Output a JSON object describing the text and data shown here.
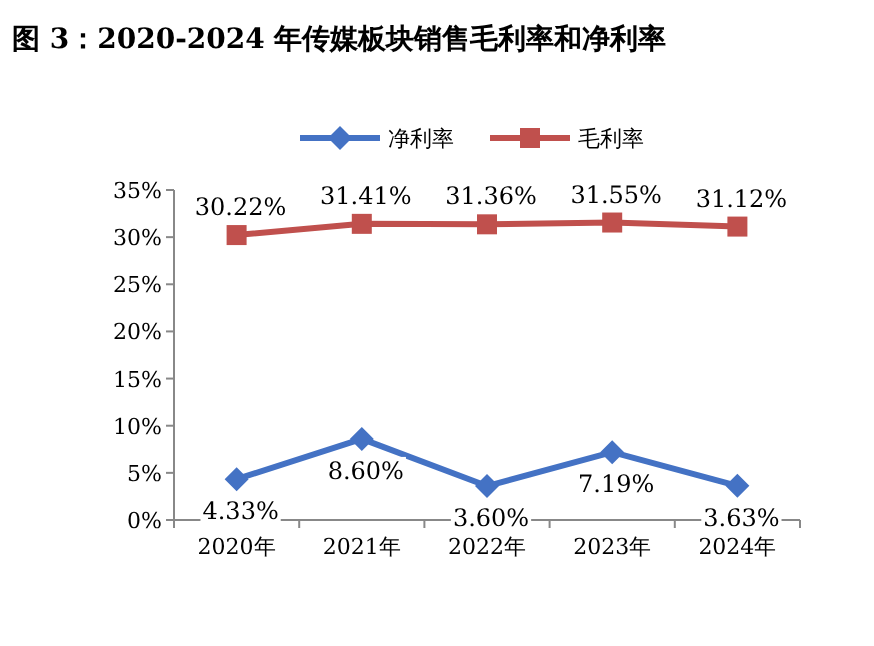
{
  "chart_data": {
    "type": "line",
    "title": "图 3：2020-2024 年传媒板块销售毛利率和净利率",
    "categories": [
      "2020年",
      "2021年",
      "2022年",
      "2023年",
      "2024年"
    ],
    "series": [
      {
        "name": "净利率",
        "color": "#4472c4",
        "marker": "diamond",
        "values": [
          4.33,
          8.6,
          3.6,
          7.19,
          3.63
        ],
        "value_labels": [
          "4.33%",
          "8.60%",
          "3.60%",
          "7.19%",
          "3.63%"
        ]
      },
      {
        "name": "毛利率",
        "color": "#c0504d",
        "marker": "square",
        "values": [
          30.22,
          31.41,
          31.36,
          31.55,
          31.12
        ],
        "value_labels": [
          "30.22%",
          "31.41%",
          "31.36%",
          "31.55%",
          "31.12%"
        ]
      }
    ],
    "ylim": [
      0,
      35
    ],
    "yticks": [
      {
        "value": 0,
        "label": "0%"
      },
      {
        "value": 5,
        "label": "5%"
      },
      {
        "value": 10,
        "label": "10%"
      },
      {
        "value": 15,
        "label": "15%"
      },
      {
        "value": 20,
        "label": "20%"
      },
      {
        "value": 25,
        "label": "25%"
      },
      {
        "value": 30,
        "label": "30%"
      },
      {
        "value": 35,
        "label": "35%"
      }
    ],
    "legend": "top",
    "grid": false
  }
}
